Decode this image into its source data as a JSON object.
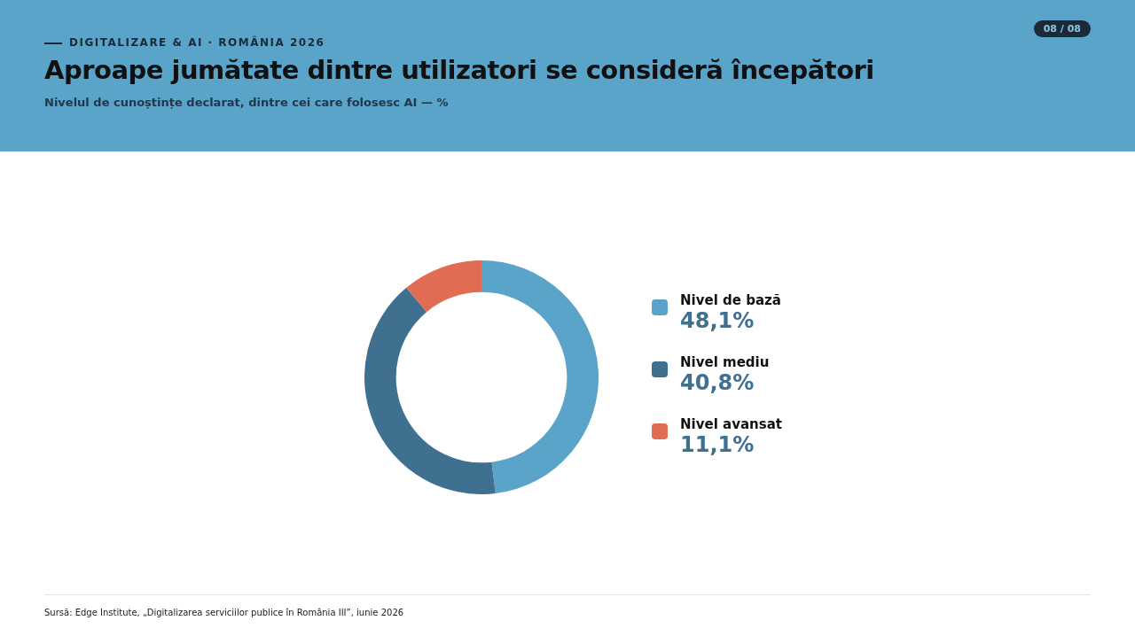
{
  "chart_data": {
    "type": "donut",
    "title": "Aproape jumătate dintre utilizatori se consideră începători",
    "subtitle": "Nivelul de cunoștințe declarat, dintre cei care folosesc AI — %",
    "categories": [
      "Nivel de bază",
      "Nivel mediu",
      "Nivel avansat"
    ],
    "values": [
      48.1,
      40.8,
      11.1
    ],
    "colors": [
      "#5ba4c9",
      "#3f7090",
      "#e06c53"
    ],
    "value_labels": [
      "48,1%",
      "40,8%",
      "11,1%"
    ],
    "legend": "right",
    "annotations": [
      "DIGITALIZARE & AI · ROMÂNIA 2026",
      "08 / 08",
      "Sursă: Edge Institute, „Digitalizarea serviciilor publice în România III”, iunie 2026"
    ]
  }
}
